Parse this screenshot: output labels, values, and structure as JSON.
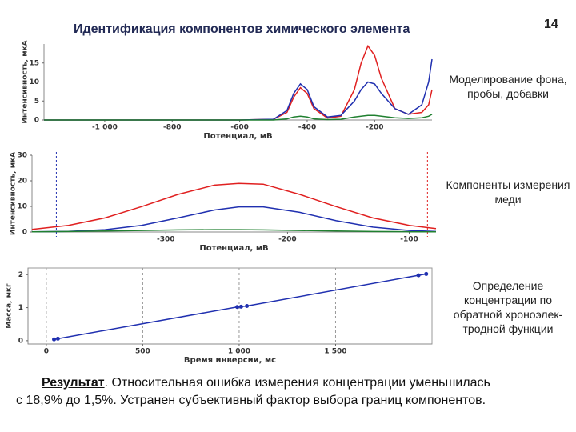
{
  "slide": {
    "title": "Идентификация компонентов химического элемента",
    "page_number": "14",
    "captions": [
      "Моделирование фона, пробы, добавки",
      "Компоненты измерения меди",
      "Определение концентрации по обратной хроноэлек-тродной функции"
    ],
    "result_label": "Результат",
    "result_lines": [
      ". Относительная ошибка измерения концентрации уменьшилась",
      "с 18,9% до 1,5%. Устранен субъективный фактор выбора границ компонентов."
    ]
  },
  "chart_data": [
    {
      "type": "line",
      "xlabel": "Потенциал, мВ",
      "ylabel": "Интенсивность, мкА",
      "x": [
        -1180,
        -1000,
        -800,
        -600,
        -500,
        -460,
        -440,
        -420,
        -400,
        -380,
        -340,
        -300,
        -260,
        -240,
        -220,
        -200,
        -180,
        -140,
        -100,
        -60,
        -40,
        -30
      ],
      "series": [
        {
          "color": "#e02020",
          "values": [
            0,
            0,
            0,
            0,
            0.2,
            2,
            6,
            8.5,
            7,
            3,
            0.5,
            1,
            8,
            15,
            19.5,
            17,
            11,
            3,
            1.5,
            2,
            4,
            8
          ]
        },
        {
          "color": "#2030b0",
          "values": [
            0,
            0,
            0,
            0,
            0.2,
            2.5,
            7,
            9.5,
            8,
            3.5,
            0.8,
            1.2,
            5,
            8,
            10,
            9.5,
            7,
            3,
            1.5,
            4,
            10,
            16
          ]
        },
        {
          "color": "#208030",
          "values": [
            0,
            0,
            0,
            0,
            0,
            0.3,
            0.8,
            1,
            0.8,
            0.3,
            0.1,
            0.2,
            0.8,
            1,
            1.2,
            1.2,
            1,
            0.6,
            0.4,
            0.6,
            1,
            1.5
          ]
        }
      ],
      "xlim": [
        -1180,
        -30
      ],
      "xticks": [
        {
          "value": -1000,
          "label": "-1 000"
        },
        -800,
        -600,
        -400,
        -200
      ],
      "ylim": [
        0,
        20
      ],
      "yticks": [
        0,
        5,
        10,
        15
      ]
    },
    {
      "type": "line",
      "xlabel": "Потенциал, мВ",
      "ylabel": "Интенсивность, мкА",
      "x": [
        -410,
        -380,
        -350,
        -320,
        -290,
        -260,
        -240,
        -220,
        -190,
        -160,
        -130,
        -100,
        -78
      ],
      "series": [
        {
          "color": "#e02020",
          "values": [
            1,
            2.6,
            5.5,
            9.9,
            14.7,
            18.3,
            19,
            18.7,
            14.7,
            9.9,
            5.5,
            2.6,
            1.3
          ]
        },
        {
          "color": "#2030b0",
          "values": [
            0.05,
            0.24,
            0.9,
            2.6,
            5.5,
            8.6,
            9.8,
            9.8,
            7.7,
            4.4,
            1.9,
            0.6,
            0.2
          ]
        },
        {
          "color": "#208030",
          "values": [
            0.1,
            0.2,
            0.4,
            0.6,
            0.8,
            0.9,
            0.9,
            0.8,
            0.6,
            0.4,
            0.2,
            0.1,
            0.05
          ]
        }
      ],
      "boundaries": [
        {
          "x": -390,
          "color": "#2030b0"
        },
        {
          "x": -85,
          "color": "#e02020"
        }
      ],
      "xlim": [
        -410,
        -78
      ],
      "xticks": [
        -300,
        -200,
        -100
      ],
      "ylim": [
        0,
        30
      ],
      "yticks": [
        0,
        10,
        20,
        30
      ]
    },
    {
      "type": "line",
      "markers": true,
      "grid": true,
      "xlabel": "Время инверсии, мс",
      "ylabel": "Масса, мкг",
      "x": [
        40,
        60,
        990,
        1010,
        1040,
        1930,
        1970
      ],
      "series": [
        {
          "color": "#2030b0",
          "values": [
            0.04,
            0.06,
            1.02,
            1.03,
            1.05,
            1.98,
            2.02
          ]
        }
      ],
      "xlim": [
        -95,
        2000
      ],
      "xticks": [
        0,
        500,
        {
          "value": 1000,
          "label": "1 000"
        },
        {
          "value": 1500,
          "label": "1 500"
        }
      ],
      "ylim": [
        -0.1,
        2.2
      ],
      "yticks": [
        0,
        1,
        2
      ]
    }
  ]
}
